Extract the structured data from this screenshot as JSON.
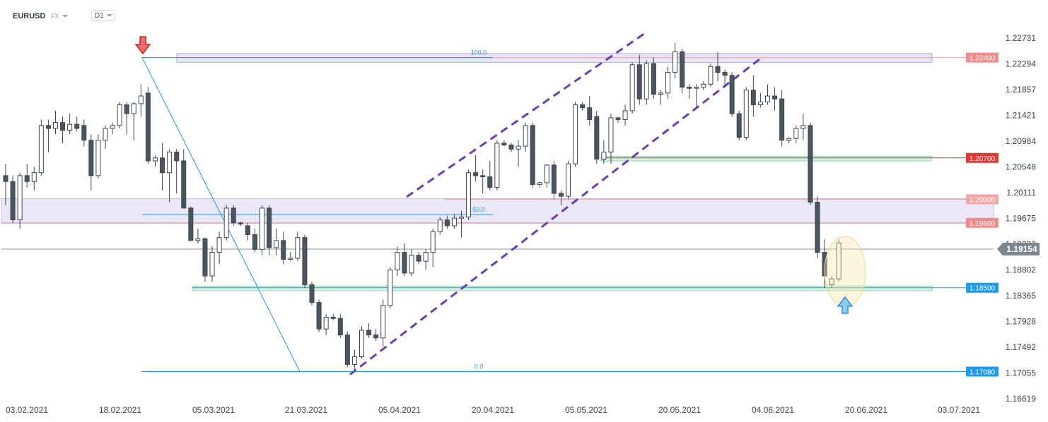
{
  "header": {
    "symbol": "EURUSD",
    "exchange": "FX",
    "timeframe": "D1"
  },
  "chart_data": {
    "type": "candlestick",
    "symbol": "EURUSD",
    "timeframe": "D1",
    "x_tick_labels": [
      "03.02.2021",
      "18.02.2021",
      "05.03.2021",
      "21.03.2021",
      "05.04.2021",
      "20.04.2021",
      "05.05.2021",
      "20.05.2021",
      "04.06.2021",
      "20.06.2021",
      "03.07.2021"
    ],
    "y_tick_labels": [
      "1.22731",
      "1.22294",
      "1.21857",
      "1.21421",
      "1.20984",
      "1.20548",
      "1.20111",
      "1.19675",
      "1.19238",
      "1.18802",
      "1.18365",
      "1.17928",
      "1.17492",
      "1.17055",
      "1.16619"
    ],
    "ylim": [
      1.16619,
      1.22731
    ],
    "current_price": "1.19154",
    "horizontal_levels": [
      {
        "label": "1.22400",
        "value": 1.224,
        "color": "#f08c8c",
        "zone": "lavender"
      },
      {
        "label": "1.20700",
        "value": 1.207,
        "color": "#e53935",
        "zone": "green"
      },
      {
        "label": "1.20000",
        "value": 1.2,
        "color": "#f08c8c",
        "zone": "lavender"
      },
      {
        "label": "1.19600",
        "value": 1.196,
        "color": "#f08c8c",
        "zone": "lavender"
      },
      {
        "label": "1.18500",
        "value": 1.185,
        "color": "#1e9bf0",
        "zone": "green"
      },
      {
        "label": "1.17080",
        "value": 1.1708,
        "color": "#1e9bf0",
        "zone": "none"
      }
    ],
    "fibonacci": {
      "high": 1.224,
      "low": 1.1708,
      "levels": [
        {
          "label": "100.0",
          "value": 1.224
        },
        {
          "label": "50.0",
          "value": 1.1974
        },
        {
          "label": "0.0",
          "value": 1.1708
        }
      ]
    },
    "channel_lines": [
      {
        "from": [
          1.2001,
          1.2001
        ],
        "note": "upper"
      }
    ],
    "markers": [
      "down-arrow at swing high",
      "up-arrow at support 1.18500"
    ],
    "candles": [
      {
        "o": 1.204,
        "h": 1.206,
        "l": 1.199,
        "c": 1.203
      },
      {
        "o": 1.203,
        "h": 1.204,
        "l": 1.196,
        "c": 1.1965
      },
      {
        "o": 1.1965,
        "h": 1.2045,
        "l": 1.195,
        "c": 1.204
      },
      {
        "o": 1.204,
        "h": 1.206,
        "l": 1.202,
        "c": 1.203
      },
      {
        "o": 1.203,
        "h": 1.2055,
        "l": 1.2015,
        "c": 1.2045
      },
      {
        "o": 1.2045,
        "h": 1.2135,
        "l": 1.204,
        "c": 1.2125
      },
      {
        "o": 1.2125,
        "h": 1.2135,
        "l": 1.208,
        "c": 1.212
      },
      {
        "o": 1.212,
        "h": 1.215,
        "l": 1.211,
        "c": 1.213
      },
      {
        "o": 1.213,
        "h": 1.214,
        "l": 1.2095,
        "c": 1.2117
      },
      {
        "o": 1.2117,
        "h": 1.2145,
        "l": 1.211,
        "c": 1.2127
      },
      {
        "o": 1.2127,
        "h": 1.214,
        "l": 1.2115,
        "c": 1.212
      },
      {
        "o": 1.2125,
        "h": 1.2135,
        "l": 1.209,
        "c": 1.21
      },
      {
        "o": 1.21,
        "h": 1.211,
        "l": 1.2015,
        "c": 1.204
      },
      {
        "o": 1.204,
        "h": 1.211,
        "l": 1.2035,
        "c": 1.21
      },
      {
        "o": 1.21,
        "h": 1.2125,
        "l": 1.2085,
        "c": 1.212
      },
      {
        "o": 1.212,
        "h": 1.213,
        "l": 1.211,
        "c": 1.2125
      },
      {
        "o": 1.2125,
        "h": 1.2165,
        "l": 1.212,
        "c": 1.216
      },
      {
        "o": 1.216,
        "h": 1.2165,
        "l": 1.211,
        "c": 1.2145
      },
      {
        "o": 1.2145,
        "h": 1.2165,
        "l": 1.21,
        "c": 1.2162
      },
      {
        "o": 1.2162,
        "h": 1.2195,
        "l": 1.214,
        "c": 1.2175
      },
      {
        "o": 1.218,
        "h": 1.219,
        "l": 1.206,
        "c": 1.2065
      },
      {
        "o": 1.2065,
        "h": 1.2075,
        "l": 1.2055,
        "c": 1.207
      },
      {
        "o": 1.207,
        "h": 1.2095,
        "l": 1.2015,
        "c": 1.2045
      },
      {
        "o": 1.2045,
        "h": 1.2085,
        "l": 1.1995,
        "c": 1.208
      },
      {
        "o": 1.208,
        "h": 1.2085,
        "l": 1.201,
        "c": 1.2065
      },
      {
        "o": 1.2065,
        "h": 1.2085,
        "l": 1.199,
        "c": 1.1985
      },
      {
        "o": 1.1985,
        "h": 1.1988,
        "l": 1.193,
        "c": 1.193
      },
      {
        "o": 1.193,
        "h": 1.195,
        "l": 1.1925,
        "c": 1.1933
      },
      {
        "o": 1.1933,
        "h": 1.1935,
        "l": 1.186,
        "c": 1.187
      },
      {
        "o": 1.187,
        "h": 1.192,
        "l": 1.186,
        "c": 1.191
      },
      {
        "o": 1.191,
        "h": 1.1945,
        "l": 1.189,
        "c": 1.1935
      },
      {
        "o": 1.1935,
        "h": 1.199,
        "l": 1.193,
        "c": 1.1985
      },
      {
        "o": 1.1985,
        "h": 1.199,
        "l": 1.1955,
        "c": 1.196
      },
      {
        "o": 1.196,
        "h": 1.1962,
        "l": 1.1955,
        "c": 1.1958
      },
      {
        "o": 1.1955,
        "h": 1.196,
        "l": 1.193,
        "c": 1.194
      },
      {
        "o": 1.194,
        "h": 1.195,
        "l": 1.191,
        "c": 1.1915
      },
      {
        "o": 1.1915,
        "h": 1.199,
        "l": 1.1905,
        "c": 1.1985
      },
      {
        "o": 1.1985,
        "h": 1.199,
        "l": 1.1905,
        "c": 1.1918
      },
      {
        "o": 1.1918,
        "h": 1.195,
        "l": 1.1905,
        "c": 1.193
      },
      {
        "o": 1.193,
        "h": 1.1945,
        "l": 1.189,
        "c": 1.1898
      },
      {
        "o": 1.1898,
        "h": 1.191,
        "l": 1.1895,
        "c": 1.19
      },
      {
        "o": 1.19,
        "h": 1.1945,
        "l": 1.1895,
        "c": 1.1935
      },
      {
        "o": 1.1935,
        "h": 1.194,
        "l": 1.185,
        "c": 1.1855
      },
      {
        "o": 1.1855,
        "h": 1.186,
        "l": 1.182,
        "c": 1.1825
      },
      {
        "o": 1.1825,
        "h": 1.183,
        "l": 1.1775,
        "c": 1.178
      },
      {
        "o": 1.178,
        "h": 1.1805,
        "l": 1.177,
        "c": 1.18
      },
      {
        "o": 1.18,
        "h": 1.1805,
        "l": 1.1795,
        "c": 1.1798
      },
      {
        "o": 1.1798,
        "h": 1.1805,
        "l": 1.1765,
        "c": 1.177
      },
      {
        "o": 1.177,
        "h": 1.1775,
        "l": 1.1715,
        "c": 1.172
      },
      {
        "o": 1.172,
        "h": 1.1745,
        "l": 1.171,
        "c": 1.1733
      },
      {
        "o": 1.1733,
        "h": 1.1785,
        "l": 1.173,
        "c": 1.1778
      },
      {
        "o": 1.1778,
        "h": 1.179,
        "l": 1.1765,
        "c": 1.177
      },
      {
        "o": 1.177,
        "h": 1.178,
        "l": 1.176,
        "c": 1.1765
      },
      {
        "o": 1.1765,
        "h": 1.183,
        "l": 1.175,
        "c": 1.182
      },
      {
        "o": 1.182,
        "h": 1.1885,
        "l": 1.1815,
        "c": 1.188
      },
      {
        "o": 1.188,
        "h": 1.192,
        "l": 1.187,
        "c": 1.191
      },
      {
        "o": 1.191,
        "h": 1.1925,
        "l": 1.187,
        "c": 1.1875
      },
      {
        "o": 1.1875,
        "h": 1.1915,
        "l": 1.187,
        "c": 1.1905
      },
      {
        "o": 1.1905,
        "h": 1.191,
        "l": 1.189,
        "c": 1.1895
      },
      {
        "o": 1.1895,
        "h": 1.1915,
        "l": 1.188,
        "c": 1.191
      },
      {
        "o": 1.191,
        "h": 1.195,
        "l": 1.1885,
        "c": 1.1945
      },
      {
        "o": 1.1945,
        "h": 1.197,
        "l": 1.194,
        "c": 1.1965
      },
      {
        "o": 1.1965,
        "h": 1.1972,
        "l": 1.195,
        "c": 1.1955
      },
      {
        "o": 1.1955,
        "h": 1.1975,
        "l": 1.195,
        "c": 1.1968
      },
      {
        "o": 1.1968,
        "h": 1.198,
        "l": 1.1935,
        "c": 1.197
      },
      {
        "o": 1.197,
        "h": 1.205,
        "l": 1.1965,
        "c": 1.2045
      },
      {
        "o": 1.2045,
        "h": 1.2075,
        "l": 1.203,
        "c": 1.204
      },
      {
        "o": 1.204,
        "h": 1.205,
        "l": 1.201,
        "c": 1.2038
      },
      {
        "o": 1.2038,
        "h": 1.2065,
        "l": 1.2015,
        "c": 1.202
      },
      {
        "o": 1.202,
        "h": 1.21,
        "l": 1.2015,
        "c": 1.2095
      },
      {
        "o": 1.2095,
        "h": 1.21,
        "l": 1.209,
        "c": 1.2092
      },
      {
        "o": 1.2092,
        "h": 1.2095,
        "l": 1.208,
        "c": 1.2085
      },
      {
        "o": 1.2085,
        "h": 1.21,
        "l": 1.2055,
        "c": 1.209
      },
      {
        "o": 1.209,
        "h": 1.213,
        "l": 1.208,
        "c": 1.2125
      },
      {
        "o": 1.2125,
        "h": 1.213,
        "l": 1.202,
        "c": 1.2025
      },
      {
        "o": 1.2025,
        "h": 1.203,
        "l": 1.202,
        "c": 1.2028
      },
      {
        "o": 1.2028,
        "h": 1.206,
        "l": 1.202,
        "c": 1.2058
      },
      {
        "o": 1.2058,
        "h": 1.2065,
        "l": 1.2,
        "c": 1.201
      },
      {
        "o": 1.201,
        "h": 1.2015,
        "l": 1.199,
        "c": 1.2005
      },
      {
        "o": 1.2005,
        "h": 1.2065,
        "l": 1.2,
        "c": 1.206
      },
      {
        "o": 1.206,
        "h": 1.2165,
        "l": 1.2055,
        "c": 1.216
      },
      {
        "o": 1.216,
        "h": 1.2165,
        "l": 1.215,
        "c": 1.2155
      },
      {
        "o": 1.2155,
        "h": 1.2175,
        "l": 1.2125,
        "c": 1.2135
      },
      {
        "o": 1.214,
        "h": 1.215,
        "l": 1.206,
        "c": 1.2068
      },
      {
        "o": 1.2068,
        "h": 1.21,
        "l": 1.206,
        "c": 1.208
      },
      {
        "o": 1.208,
        "h": 1.2145,
        "l": 1.206,
        "c": 1.2138
      },
      {
        "o": 1.2138,
        "h": 1.214,
        "l": 1.213,
        "c": 1.2135
      },
      {
        "o": 1.2135,
        "h": 1.216,
        "l": 1.2125,
        "c": 1.215
      },
      {
        "o": 1.215,
        "h": 1.2232,
        "l": 1.2145,
        "c": 1.2228
      },
      {
        "o": 1.2228,
        "h": 1.2245,
        "l": 1.216,
        "c": 1.217
      },
      {
        "o": 1.217,
        "h": 1.2235,
        "l": 1.216,
        "c": 1.223
      },
      {
        "o": 1.223,
        "h": 1.224,
        "l": 1.217,
        "c": 1.2178
      },
      {
        "o": 1.2178,
        "h": 1.2185,
        "l": 1.216,
        "c": 1.218
      },
      {
        "o": 1.218,
        "h": 1.2225,
        "l": 1.217,
        "c": 1.2215
      },
      {
        "o": 1.2215,
        "h": 1.2265,
        "l": 1.2205,
        "c": 1.225
      },
      {
        "o": 1.225,
        "h": 1.2255,
        "l": 1.218,
        "c": 1.219
      },
      {
        "o": 1.219,
        "h": 1.2195,
        "l": 1.217,
        "c": 1.2188
      },
      {
        "o": 1.2188,
        "h": 1.2195,
        "l": 1.2155,
        "c": 1.219
      },
      {
        "o": 1.219,
        "h": 1.22,
        "l": 1.2185,
        "c": 1.2195
      },
      {
        "o": 1.2195,
        "h": 1.223,
        "l": 1.219,
        "c": 1.2225
      },
      {
        "o": 1.2225,
        "h": 1.225,
        "l": 1.22,
        "c": 1.2215
      },
      {
        "o": 1.2215,
        "h": 1.222,
        "l": 1.219,
        "c": 1.221
      },
      {
        "o": 1.221,
        "h": 1.2215,
        "l": 1.214,
        "c": 1.2145
      },
      {
        "o": 1.2145,
        "h": 1.215,
        "l": 1.21,
        "c": 1.2105
      },
      {
        "o": 1.2105,
        "h": 1.219,
        "l": 1.21,
        "c": 1.2185
      },
      {
        "o": 1.2185,
        "h": 1.221,
        "l": 1.214,
        "c": 1.216
      },
      {
        "o": 1.216,
        "h": 1.218,
        "l": 1.2155,
        "c": 1.2165
      },
      {
        "o": 1.2165,
        "h": 1.2195,
        "l": 1.216,
        "c": 1.2175
      },
      {
        "o": 1.2175,
        "h": 1.219,
        "l": 1.215,
        "c": 1.217
      },
      {
        "o": 1.217,
        "h": 1.2185,
        "l": 1.209,
        "c": 1.21
      },
      {
        "o": 1.21,
        "h": 1.2105,
        "l": 1.2095,
        "c": 1.2103
      },
      {
        "o": 1.2103,
        "h": 1.2125,
        "l": 1.2095,
        "c": 1.212
      },
      {
        "o": 1.212,
        "h": 1.2145,
        "l": 1.21,
        "c": 1.2125
      },
      {
        "o": 1.2125,
        "h": 1.213,
        "l": 1.199,
        "c": 1.1995
      },
      {
        "o": 1.1995,
        "h": 1.2005,
        "l": 1.19,
        "c": 1.191
      },
      {
        "o": 1.191,
        "h": 1.1932,
        "l": 1.185,
        "c": 1.187
      },
      {
        "o": 1.1855,
        "h": 1.187,
        "l": 1.185,
        "c": 1.1865
      },
      {
        "o": 1.1865,
        "h": 1.1932,
        "l": 1.186,
        "c": 1.1926
      }
    ],
    "grid": false,
    "legend": "none"
  }
}
